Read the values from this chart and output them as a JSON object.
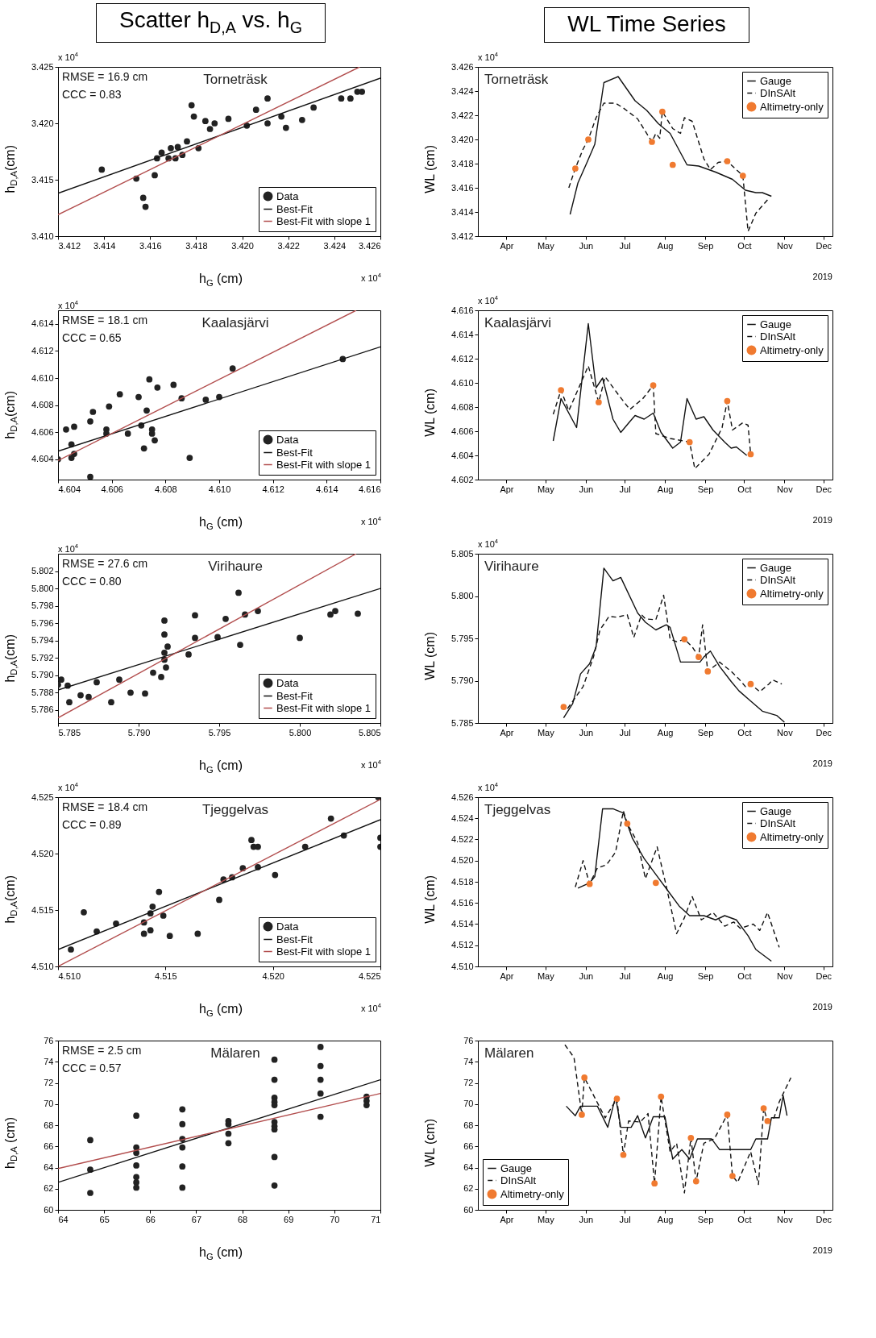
{
  "chart_data": [
    {
      "type": "scatter",
      "title": "Scatter h$_{D,A}$ vs. h$_{G}$",
      "subtitle": "Torneträsk",
      "xlabel": "h$_{G}$ (cm)",
      "ylabel": "h$_{D,A}$(cm)",
      "annotations": [
        "RMSE = 16.9 cm",
        "CCC = 0.83",
        "x 10$^{4}$",
        "x 10$^{4}$"
      ],
      "legend": "bottom right",
      "xlim": [
        3.412,
        3.426
      ],
      "xticks": [
        3.412,
        3.414,
        3.416,
        3.418,
        {
          "value": 3.42,
          "label": "3.420"
        },
        3.422,
        3.424,
        3.426
      ],
      "ylim": [
        3.41,
        3.425
      ],
      "yticks": [
        {
          "value": 3.41,
          "label": "3.410"
        },
        3.415,
        {
          "value": 3.42,
          "label": "3.420"
        },
        3.425
      ],
      "series": [
        {
          "name": "Data",
          "type": "scatter",
          "color": "#222222",
          "x": [
            3.4139,
            3.4154,
            3.4157,
            3.4158,
            3.4162,
            3.4163,
            3.4165,
            3.4168,
            3.4169,
            3.4171,
            3.4172,
            3.4174,
            3.4176,
            3.4178,
            3.4179,
            3.4181,
            3.4184,
            3.4186,
            3.4188,
            3.4194,
            3.4202,
            3.4206,
            3.4211,
            3.4211,
            3.4217,
            3.4219,
            3.4226,
            3.4231,
            3.4243,
            3.4247,
            3.425,
            3.4252
          ],
          "values": [
            3.4159,
            3.4151,
            3.4134,
            3.4126,
            3.4154,
            3.4169,
            3.4174,
            3.4169,
            3.4178,
            3.4169,
            3.4179,
            3.4172,
            3.4184,
            3.4216,
            3.4206,
            3.4178,
            3.4202,
            3.4195,
            3.42,
            3.4204,
            3.4198,
            3.4212,
            3.4222,
            3.42,
            3.4206,
            3.4196,
            3.4203,
            3.4214,
            3.4222,
            3.4222,
            3.4228,
            3.4228
          ]
        },
        {
          "name": "Best-Fit",
          "type": "line",
          "color": "#111111",
          "x": [
            3.412,
            3.426
          ],
          "values": [
            3.4138,
            3.424
          ]
        },
        {
          "name": "Best-Fit with slope 1",
          "type": "line",
          "color": "#b24d4d",
          "x": [
            3.412,
            3.4251
          ],
          "values": [
            3.4119,
            3.425
          ]
        }
      ]
    },
    {
      "type": "line",
      "title": "WL Time Series",
      "subtitle": "Torneträsk",
      "ylabel": "WL (cm)",
      "annotations": [
        "2019",
        "x 10$^{4}$"
      ],
      "legend": "top right",
      "xlim": [
        "2019-03-10",
        "2019-12-08"
      ],
      "xticks": [
        {
          "value": "2019-04-01",
          "label": "Apr"
        },
        {
          "value": "2019-05-01",
          "label": "May"
        },
        {
          "value": "2019-06-01",
          "label": "Jun"
        },
        {
          "value": "2019-07-01",
          "label": "Jul"
        },
        {
          "value": "2019-08-01",
          "label": "Aug"
        },
        {
          "value": "2019-09-01",
          "label": "Sep"
        },
        {
          "value": "2019-10-01",
          "label": "Oct"
        },
        {
          "value": "2019-11-01",
          "label": "Nov"
        },
        {
          "value": "2019-12-01",
          "label": "Dec"
        }
      ],
      "ylim": [
        3.412,
        3.426
      ],
      "yticks": [
        3.412,
        3.414,
        3.416,
        3.418,
        {
          "value": 3.42,
          "label": "3.420"
        },
        3.422,
        3.424,
        3.426
      ],
      "series": [
        {
          "name": "Gauge",
          "type": "line",
          "line_style": "solid",
          "color": "#111111",
          "x": [
            "2019-05-20",
            "2019-05-26",
            "2019-06-02",
            "2019-06-08",
            "2019-06-15",
            "2019-06-26",
            "2019-07-09",
            "2019-07-18",
            "2019-07-27",
            "2019-08-05",
            "2019-08-18",
            "2019-08-27",
            "2019-09-09",
            "2019-09-22",
            "2019-10-02",
            "2019-10-10",
            "2019-10-15",
            "2019-10-22"
          ],
          "values": [
            3.4138,
            3.4164,
            3.4181,
            3.4196,
            3.4247,
            3.4252,
            3.4232,
            3.4224,
            3.4213,
            3.4205,
            3.4179,
            3.4178,
            3.4173,
            3.4167,
            3.4158,
            3.4156,
            3.4156,
            3.4153
          ]
        },
        {
          "name": "DInSAlt",
          "type": "line",
          "line_style": "dashed",
          "color": "#111111",
          "x": [
            "2019-05-19",
            "2019-05-24",
            "2019-05-30",
            "2019-06-03",
            "2019-06-09",
            "2019-06-15",
            "2019-06-24",
            "2019-06-30",
            "2019-07-11",
            "2019-07-22",
            "2019-07-25",
            "2019-07-28",
            "2019-07-30",
            "2019-08-07",
            "2019-08-13",
            "2019-08-16",
            "2019-08-22",
            "2019-08-31",
            "2019-09-05",
            "2019-09-11",
            "2019-09-18",
            "2019-09-30",
            "2019-10-04",
            "2019-10-10",
            "2019-10-19"
          ],
          "values": [
            3.416,
            3.4176,
            3.4192,
            3.42,
            3.4218,
            3.423,
            3.423,
            3.4226,
            3.4217,
            3.4198,
            3.4205,
            3.4201,
            3.4223,
            3.4209,
            3.4205,
            3.4218,
            3.4215,
            3.4184,
            3.4175,
            3.4181,
            3.4182,
            3.417,
            3.4124,
            3.4139,
            3.415
          ]
        },
        {
          "name": "Altimetry-only",
          "type": "scatter",
          "color": "#f07a30",
          "x": [
            "2019-05-24",
            "2019-06-03",
            "2019-07-22",
            "2019-07-30",
            "2019-08-07",
            "2019-09-18",
            "2019-09-30"
          ],
          "values": [
            3.4176,
            3.42,
            3.4198,
            3.4223,
            3.4179,
            3.4182,
            3.417
          ]
        }
      ]
    },
    {
      "type": "scatter",
      "subtitle": "Kaalasjärvi",
      "xlabel": "h$_{G}$ (cm)",
      "ylabel": "h$_{D,A}$(cm)",
      "annotations": [
        "RMSE = 18.1 cm",
        "CCC = 0.65",
        "x 10$^{4}$",
        "x 10$^{4}$"
      ],
      "legend": "bottom right",
      "xlim": [
        4.604,
        4.616
      ],
      "xticks": [
        4.604,
        4.606,
        4.608,
        {
          "value": 4.61,
          "label": "4.610"
        },
        4.612,
        4.614,
        4.616
      ],
      "ylim": [
        4.6025,
        4.615
      ],
      "yticks": [
        4.604,
        4.606,
        4.608,
        {
          "value": 4.61,
          "label": "4.610"
        },
        4.612,
        4.614
      ],
      "series": [
        {
          "name": "Data",
          "type": "scatter",
          "color": "#222222",
          "x": [
            4.604,
            4.6043,
            4.6045,
            4.6045,
            4.6046,
            4.6046,
            4.6052,
            4.6052,
            4.6053,
            4.6058,
            4.6058,
            4.6059,
            4.6063,
            4.6066,
            4.607,
            4.6071,
            4.6072,
            4.6073,
            4.6074,
            4.6075,
            4.6075,
            4.6076,
            4.6077,
            4.6083,
            4.6086,
            4.6089,
            4.6095,
            4.61,
            4.6105,
            4.6146
          ],
          "values": [
            4.604,
            4.6062,
            4.6051,
            4.6041,
            4.6064,
            4.6044,
            4.6027,
            4.6068,
            4.6075,
            4.6062,
            4.6059,
            4.6079,
            4.6088,
            4.6059,
            4.6086,
            4.6065,
            4.6048,
            4.6076,
            4.6099,
            4.6062,
            4.6059,
            4.6054,
            4.6093,
            4.6095,
            4.6085,
            4.6041,
            4.6084,
            4.6086,
            4.6107,
            4.6114
          ]
        },
        {
          "name": "Best-Fit",
          "type": "line",
          "color": "#111111",
          "x": [
            4.604,
            4.616
          ],
          "values": [
            4.6046,
            4.6123
          ]
        },
        {
          "name": "Best-Fit with slope 1",
          "type": "line",
          "color": "#b24d4d",
          "x": [
            4.604,
            4.6151
          ],
          "values": [
            4.6039,
            4.615
          ]
        }
      ]
    },
    {
      "type": "line",
      "subtitle": "Kaalasjärvi",
      "ylabel": "WL (cm)",
      "annotations": [
        "2019",
        "x 10$^{4}$"
      ],
      "legend": "top right",
      "xlim": [
        "2019-03-10",
        "2019-12-08"
      ],
      "xticks": [
        {
          "value": "2019-04-01",
          "label": "Apr"
        },
        {
          "value": "2019-05-01",
          "label": "May"
        },
        {
          "value": "2019-06-01",
          "label": "Jun"
        },
        {
          "value": "2019-07-01",
          "label": "Jul"
        },
        {
          "value": "2019-08-01",
          "label": "Aug"
        },
        {
          "value": "2019-09-01",
          "label": "Sep"
        },
        {
          "value": "2019-10-01",
          "label": "Oct"
        },
        {
          "value": "2019-11-01",
          "label": "Nov"
        },
        {
          "value": "2019-12-01",
          "label": "Dec"
        }
      ],
      "ylim": [
        4.602,
        4.616
      ],
      "yticks": [
        4.602,
        4.604,
        4.606,
        4.608,
        {
          "value": 4.61,
          "label": "4.610"
        },
        4.612,
        4.614,
        4.616
      ],
      "series": [
        {
          "name": "Gauge",
          "type": "line",
          "line_style": "solid",
          "color": "#111111",
          "x": [
            "2019-05-07",
            "2019-05-13",
            "2019-05-25",
            "2019-06-03",
            "2019-06-09",
            "2019-06-14",
            "2019-06-22",
            "2019-06-28",
            "2019-07-05",
            "2019-07-09",
            "2019-07-16",
            "2019-07-23",
            "2019-07-29",
            "2019-08-07",
            "2019-08-13",
            "2019-08-18",
            "2019-08-25",
            "2019-08-31",
            "2019-09-07",
            "2019-09-16",
            "2019-09-21",
            "2019-09-25",
            "2019-10-03"
          ],
          "values": [
            4.6052,
            4.6087,
            4.6063,
            4.6149,
            4.6096,
            4.6104,
            4.607,
            4.6059,
            4.6068,
            4.6073,
            4.607,
            4.6075,
            4.6059,
            4.6046,
            4.6051,
            4.6087,
            4.607,
            4.6072,
            4.6061,
            4.6051,
            4.6046,
            4.6047,
            4.604
          ]
        },
        {
          "name": "DInSAlt",
          "type": "line",
          "line_style": "dashed",
          "color": "#111111",
          "x": [
            "2019-05-07",
            "2019-05-13",
            "2019-05-19",
            "2019-06-03",
            "2019-06-11",
            "2019-06-16",
            "2019-06-27",
            "2019-07-05",
            "2019-07-15",
            "2019-07-23",
            "2019-07-25",
            "2019-08-05",
            "2019-08-20",
            "2019-08-24",
            "2019-09-04",
            "2019-09-14",
            "2019-09-18",
            "2019-09-22",
            "2019-09-30",
            "2019-10-04",
            "2019-10-06"
          ],
          "values": [
            4.6074,
            4.6094,
            4.6077,
            4.6114,
            4.6084,
            4.6105,
            4.6089,
            4.6078,
            4.6087,
            4.6098,
            4.6058,
            4.6054,
            4.6051,
            4.6029,
            4.6041,
            4.6063,
            4.6085,
            4.6061,
            4.6067,
            4.6065,
            4.6041
          ]
        },
        {
          "name": "Altimetry-only",
          "type": "scatter",
          "color": "#f07a30",
          "x": [
            "2019-05-13",
            "2019-06-11",
            "2019-07-23",
            "2019-08-20",
            "2019-09-18",
            "2019-10-06"
          ],
          "values": [
            4.6094,
            4.6084,
            4.6098,
            4.6051,
            4.6085,
            4.6041
          ]
        }
      ]
    },
    {
      "type": "scatter",
      "subtitle": "Virihaure",
      "xlabel": "h$_{G}$ (cm)",
      "ylabel": "h$_{D,A}$(cm)",
      "annotations": [
        "RMSE = 27.6 cm",
        "CCC = 0.80",
        "x 10$^{4}$",
        "x 10$^{4}$"
      ],
      "legend": "bottom right",
      "xlim": [
        5.785,
        5.805
      ],
      "xticks": [
        5.785,
        {
          "value": 5.79,
          "label": "5.790"
        },
        5.795,
        {
          "value": 5.8,
          "label": "5.800"
        },
        5.805
      ],
      "ylim": [
        5.7845,
        5.804
      ],
      "yticks": [
        5.786,
        5.788,
        {
          "value": 5.79,
          "label": "5.790"
        },
        5.792,
        5.794,
        5.796,
        5.798,
        {
          "value": 5.8,
          "label": "5.800"
        },
        5.802
      ],
      "series": [
        {
          "name": "Data",
          "type": "scatter",
          "color": "#222222",
          "x": [
            5.785,
            5.7852,
            5.7856,
            5.7857,
            5.7864,
            5.7869,
            5.7874,
            5.7883,
            5.7888,
            5.7895,
            5.7904,
            5.7909,
            5.7914,
            5.7916,
            5.7916,
            5.7916,
            5.7916,
            5.7917,
            5.7918,
            5.7931,
            5.7935,
            5.7935,
            5.7949,
            5.7954,
            5.7962,
            5.7963,
            5.7966,
            5.7974,
            5.8,
            5.8019,
            5.8022,
            5.8036
          ],
          "values": [
            5.7889,
            5.7895,
            5.7888,
            5.7869,
            5.7877,
            5.7875,
            5.7892,
            5.7869,
            5.7895,
            5.788,
            5.7879,
            5.7903,
            5.7898,
            5.7963,
            5.7947,
            5.7926,
            5.7918,
            5.7909,
            5.7933,
            5.7924,
            5.7969,
            5.7943,
            5.7944,
            5.7965,
            5.7995,
            5.7935,
            5.797,
            5.7974,
            5.7943,
            5.797,
            5.7974,
            5.7971
          ]
        },
        {
          "name": "Best-Fit",
          "type": "line",
          "color": "#111111",
          "x": [
            5.785,
            5.805
          ],
          "values": [
            5.7883,
            5.8
          ]
        },
        {
          "name": "Best-Fit with slope 1",
          "type": "line",
          "color": "#b24d4d",
          "x": [
            5.785,
            5.8035
          ],
          "values": [
            5.7851,
            5.804
          ]
        }
      ]
    },
    {
      "type": "line",
      "subtitle": "Virihaure",
      "ylabel": "WL (cm)",
      "annotations": [
        "2019",
        "x 10$^{4}$"
      ],
      "legend": "top right",
      "xlim": [
        "2019-03-10",
        "2019-12-08"
      ],
      "xticks": [
        {
          "value": "2019-04-01",
          "label": "Apr"
        },
        {
          "value": "2019-05-01",
          "label": "May"
        },
        {
          "value": "2019-06-01",
          "label": "Jun"
        },
        {
          "value": "2019-07-01",
          "label": "Jul"
        },
        {
          "value": "2019-08-01",
          "label": "Aug"
        },
        {
          "value": "2019-09-01",
          "label": "Sep"
        },
        {
          "value": "2019-10-01",
          "label": "Oct"
        },
        {
          "value": "2019-11-01",
          "label": "Nov"
        },
        {
          "value": "2019-12-01",
          "label": "Dec"
        }
      ],
      "ylim": [
        5.785,
        5.805
      ],
      "yticks": [
        5.785,
        {
          "value": 5.79,
          "label": "5.790"
        },
        5.795,
        {
          "value": 5.8,
          "label": "5.800"
        },
        5.805
      ],
      "series": [
        {
          "name": "Gauge",
          "type": "line",
          "line_style": "solid",
          "color": "#111111",
          "x": [
            "2019-05-15",
            "2019-05-22",
            "2019-05-28",
            "2019-06-04",
            "2019-06-09",
            "2019-06-15",
            "2019-06-22",
            "2019-06-28",
            "2019-07-11",
            "2019-07-17",
            "2019-07-25",
            "2019-08-02",
            "2019-08-05",
            "2019-08-13",
            "2019-08-20",
            "2019-08-28",
            "2019-08-31",
            "2019-09-05",
            "2019-09-12",
            "2019-09-21",
            "2019-09-27",
            "2019-10-06",
            "2019-10-15",
            "2019-10-26",
            "2019-11-01"
          ],
          "values": [
            5.7856,
            5.7873,
            5.7908,
            5.792,
            5.794,
            5.8033,
            5.8018,
            5.8022,
            5.798,
            5.7969,
            5.796,
            5.7966,
            5.7963,
            5.7922,
            5.7922,
            5.7922,
            5.7928,
            5.7935,
            5.7917,
            5.7899,
            5.7888,
            5.7876,
            5.7864,
            5.7859,
            5.7851
          ]
        },
        {
          "name": "DInSAlt",
          "type": "line",
          "line_style": "dashed",
          "color": "#111111",
          "x": [
            "2019-05-18",
            "2019-05-30",
            "2019-06-07",
            "2019-06-12",
            "2019-06-19",
            "2019-06-25",
            "2019-07-03",
            "2019-07-08",
            "2019-07-14",
            "2019-07-17",
            "2019-07-25",
            "2019-07-31",
            "2019-08-05",
            "2019-08-10",
            "2019-08-16",
            "2019-08-22",
            "2019-08-27",
            "2019-08-30",
            "2019-09-03",
            "2019-09-12",
            "2019-09-21",
            "2019-09-27",
            "2019-10-02",
            "2019-10-06",
            "2019-10-13",
            "2019-10-20",
            "2019-10-23",
            "2019-10-30"
          ],
          "values": [
            5.7867,
            5.7893,
            5.7928,
            5.796,
            5.7976,
            5.7975,
            5.7978,
            5.7951,
            5.7978,
            5.7973,
            5.7972,
            5.8001,
            5.7949,
            5.7946,
            5.7949,
            5.794,
            5.7928,
            5.7966,
            5.7911,
            5.7922,
            5.7911,
            5.7902,
            5.7893,
            5.7896,
            5.7887,
            5.7896,
            5.7901,
            5.7896
          ]
        },
        {
          "name": "Altimetry-only",
          "type": "scatter",
          "color": "#f07a30",
          "x": [
            "2019-05-15",
            "2019-08-16",
            "2019-08-27",
            "2019-09-03",
            "2019-10-06"
          ],
          "values": [
            5.7869,
            5.7949,
            5.7928,
            5.7911,
            5.7896
          ]
        }
      ]
    },
    {
      "type": "scatter",
      "subtitle": "Tjeggelvas",
      "xlabel": "h$_{G}$ (cm)",
      "ylabel": "h$_{D,A}$(cm)",
      "annotations": [
        "RMSE = 18.4 cm",
        "CCC = 0.89",
        "x 10$^{4}$",
        "x 10$^{4}$"
      ],
      "legend": "bottom right",
      "xlim": [
        4.51,
        4.525
      ],
      "xticks": [
        {
          "value": 4.51,
          "label": "4.510"
        },
        4.515,
        {
          "value": 4.52,
          "label": "4.520"
        },
        4.525
      ],
      "ylim": [
        4.51,
        4.525
      ],
      "yticks": [
        {
          "value": 4.51,
          "label": "4.510"
        },
        4.515,
        {
          "value": 4.52,
          "label": "4.520"
        },
        4.525
      ],
      "series": [
        {
          "name": "Data",
          "type": "scatter",
          "color": "#222222",
          "x": [
            4.5106,
            4.5112,
            4.5118,
            4.5127,
            4.514,
            4.514,
            4.5143,
            4.5144,
            4.5143,
            4.5147,
            4.5149,
            4.5152,
            4.5165,
            4.5175,
            4.5177,
            4.5181,
            4.5186,
            4.519,
            4.5191,
            4.5193,
            4.5193,
            4.5201,
            4.5215,
            4.5227,
            4.5233,
            4.5249,
            4.525,
            4.525
          ],
          "values": [
            4.5115,
            4.5148,
            4.5131,
            4.5138,
            4.5129,
            4.5139,
            4.5147,
            4.5153,
            4.5132,
            4.5166,
            4.5145,
            4.5127,
            4.5129,
            4.5159,
            4.5177,
            4.5179,
            4.5187,
            4.5212,
            4.5206,
            4.5206,
            4.5188,
            4.5181,
            4.5206,
            4.5231,
            4.5216,
            4.525,
            4.5214,
            4.5206
          ]
        },
        {
          "name": "Best-Fit",
          "type": "line",
          "color": "#111111",
          "x": [
            4.51,
            4.525
          ],
          "values": [
            4.5115,
            4.523
          ]
        },
        {
          "name": "Best-Fit with slope 1",
          "type": "line",
          "color": "#b24d4d",
          "x": [
            4.51,
            4.525
          ],
          "values": [
            4.51,
            4.5248
          ]
        }
      ]
    },
    {
      "type": "line",
      "subtitle": "Tjeggelvas",
      "ylabel": "WL (cm)",
      "annotations": [
        "2019",
        "x 10$^{4}$"
      ],
      "legend": "top right",
      "xlim": [
        "2019-03-10",
        "2019-12-08"
      ],
      "xticks": [
        {
          "value": "2019-04-01",
          "label": "Apr"
        },
        {
          "value": "2019-05-01",
          "label": "May"
        },
        {
          "value": "2019-06-01",
          "label": "Jun"
        },
        {
          "value": "2019-07-01",
          "label": "Jul"
        },
        {
          "value": "2019-08-01",
          "label": "Aug"
        },
        {
          "value": "2019-09-01",
          "label": "Sep"
        },
        {
          "value": "2019-10-01",
          "label": "Oct"
        },
        {
          "value": "2019-11-01",
          "label": "Nov"
        },
        {
          "value": "2019-12-01",
          "label": "Dec"
        }
      ],
      "ylim": [
        4.51,
        4.526
      ],
      "yticks": [
        {
          "value": 4.51,
          "label": "4.510"
        },
        4.512,
        4.514,
        4.516,
        4.518,
        {
          "value": 4.52,
          "label": "4.520"
        },
        4.522,
        4.524,
        4.526
      ],
      "series": [
        {
          "name": "Gauge",
          "type": "line",
          "line_style": "solid",
          "color": "#111111",
          "x": [
            "2019-05-26",
            "2019-06-04",
            "2019-06-08",
            "2019-06-14",
            "2019-06-22",
            "2019-06-30",
            "2019-07-07",
            "2019-07-16",
            "2019-07-25",
            "2019-08-03",
            "2019-08-12",
            "2019-08-20",
            "2019-08-31",
            "2019-09-09",
            "2019-09-16",
            "2019-09-25",
            "2019-10-04",
            "2019-10-10",
            "2019-10-22"
          ],
          "values": [
            4.5174,
            4.5179,
            4.5185,
            4.5249,
            4.5249,
            4.5245,
            4.5221,
            4.5202,
            4.5187,
            4.5172,
            4.5157,
            4.5148,
            4.5148,
            4.5144,
            4.5148,
            4.5144,
            4.5129,
            4.5116,
            4.5105
          ]
        },
        {
          "name": "DInSAlt",
          "type": "line",
          "line_style": "dashed",
          "color": "#111111",
          "x": [
            "2019-05-24",
            "2019-05-30",
            "2019-06-04",
            "2019-06-10",
            "2019-06-17",
            "2019-06-24",
            "2019-06-30",
            "2019-07-03",
            "2019-07-11",
            "2019-07-17",
            "2019-07-26",
            "2019-08-02",
            "2019-08-10",
            "2019-08-16",
            "2019-08-22",
            "2019-08-29",
            "2019-09-07",
            "2019-09-16",
            "2019-09-23",
            "2019-09-28",
            "2019-10-08",
            "2019-10-13",
            "2019-10-19",
            "2019-10-28"
          ],
          "values": [
            4.5175,
            4.52,
            4.5178,
            4.5193,
            4.5196,
            4.5208,
            4.5247,
            4.5235,
            4.5217,
            4.5183,
            4.5213,
            4.5176,
            4.5131,
            4.5146,
            4.5166,
            4.5144,
            4.5151,
            4.5138,
            4.5142,
            4.5136,
            4.514,
            4.5134,
            4.5151,
            4.5118
          ]
        },
        {
          "name": "Altimetry-only",
          "type": "scatter",
          "color": "#f07a30",
          "x": [
            "2019-06-04",
            "2019-07-03",
            "2019-07-25"
          ],
          "values": [
            4.5178,
            4.5235,
            4.5179
          ]
        }
      ]
    },
    {
      "type": "scatter",
      "subtitle": "Mälaren",
      "xlabel": "h$_{G}$ (cm)",
      "ylabel": "h$_{D,A}$ (cm)",
      "annotations": [
        "RMSE = 2.5 cm",
        "CCC = 0.57"
      ],
      "xlim": [
        64,
        71
      ],
      "xticks": [
        64,
        65,
        66,
        67,
        68,
        69,
        70,
        71
      ],
      "ylim": [
        60,
        76
      ],
      "yticks": [
        60,
        62,
        64,
        66,
        68,
        70,
        72,
        74,
        76
      ],
      "series": [
        {
          "type": "scatter",
          "color": "#222222",
          "x": [
            64.7,
            64.7,
            64.7,
            65.7,
            65.7,
            65.7,
            65.7,
            65.7,
            65.7,
            65.7,
            66.7,
            66.7,
            66.7,
            66.7,
            66.7,
            66.7,
            67.7,
            67.7,
            67.7,
            67.7,
            68.7,
            68.7,
            68.7,
            68.7,
            68.7,
            68.7,
            68.7,
            68.7,
            68.7,
            68.7,
            69.7,
            69.7,
            69.7,
            69.7,
            69.7,
            70.7,
            70.7,
            70.7
          ],
          "values": [
            66.6,
            63.8,
            61.6,
            68.9,
            65.9,
            65.4,
            64.2,
            63.1,
            62.6,
            62.1,
            69.5,
            68.1,
            66.7,
            65.9,
            64.1,
            62.1,
            68.4,
            68.1,
            67.2,
            66.3,
            74.2,
            72.3,
            70.6,
            70.2,
            69.9,
            68.3,
            67.9,
            67.6,
            65.0,
            62.3,
            75.4,
            73.6,
            72.3,
            71.0,
            68.8,
            70.7,
            70.3,
            69.9
          ]
        },
        {
          "type": "line",
          "color": "#111111",
          "x": [
            64,
            71
          ],
          "values": [
            62.6,
            72.3
          ]
        },
        {
          "type": "line",
          "color": "#b24d4d",
          "x": [
            64,
            71
          ],
          "values": [
            63.9,
            71.0
          ]
        }
      ]
    },
    {
      "type": "line",
      "subtitle": "Mälaren",
      "ylabel": "WL (cm)",
      "annotations": [
        "2019"
      ],
      "legend": "bottom left",
      "xlim": [
        "2019-03-10",
        "2019-12-08"
      ],
      "xticks": [
        {
          "value": "2019-04-01",
          "label": "Apr"
        },
        {
          "value": "2019-05-01",
          "label": "May"
        },
        {
          "value": "2019-06-01",
          "label": "Jun"
        },
        {
          "value": "2019-07-01",
          "label": "Jul"
        },
        {
          "value": "2019-08-01",
          "label": "Aug"
        },
        {
          "value": "2019-09-01",
          "label": "Sep"
        },
        {
          "value": "2019-10-01",
          "label": "Oct"
        },
        {
          "value": "2019-11-01",
          "label": "Nov"
        },
        {
          "value": "2019-12-01",
          "label": "Dec"
        }
      ],
      "ylim": [
        60,
        76
      ],
      "yticks": [
        60,
        62,
        64,
        66,
        68,
        70,
        72,
        74,
        76
      ],
      "series": [
        {
          "name": "Gauge",
          "type": "line",
          "line_style": "solid",
          "color": "#111111",
          "x": [
            "2019-05-17",
            "2019-05-24",
            "2019-05-28",
            "2019-06-10",
            "2019-06-18",
            "2019-06-24",
            "2019-06-28",
            "2019-07-06",
            "2019-07-11",
            "2019-07-17",
            "2019-07-23",
            "2019-08-01",
            "2019-08-07",
            "2019-08-14",
            "2019-08-20",
            "2019-08-26",
            "2019-09-06",
            "2019-09-12",
            "2019-10-06",
            "2019-10-10",
            "2019-10-19",
            "2019-10-22",
            "2019-10-28",
            "2019-10-31",
            "2019-11-03"
          ],
          "values": [
            69.8,
            68.9,
            69.8,
            69.8,
            67.8,
            70.7,
            67.8,
            67.8,
            68.9,
            66.8,
            68.8,
            68.8,
            64.8,
            65.7,
            64.8,
            66.7,
            66.7,
            65.7,
            65.7,
            66.7,
            66.7,
            68.7,
            68.7,
            70.8,
            68.9
          ]
        },
        {
          "name": "DInSAlt",
          "type": "line",
          "line_style": "dashed",
          "color": "#111111",
          "x": [
            "2019-05-16",
            "2019-05-23",
            "2019-05-29",
            "2019-05-31",
            "2019-06-08",
            "2019-06-16",
            "2019-06-25",
            "2019-06-30",
            "2019-07-04",
            "2019-07-13",
            "2019-07-19",
            "2019-07-24",
            "2019-07-29",
            "2019-08-05",
            "2019-08-10",
            "2019-08-16",
            "2019-08-21",
            "2019-08-25",
            "2019-08-31",
            "2019-09-08",
            "2019-09-18",
            "2019-09-22",
            "2019-09-26",
            "2019-10-06",
            "2019-10-12",
            "2019-10-16",
            "2019-10-19",
            "2019-10-24",
            "2019-10-28",
            "2019-11-06"
          ],
          "values": [
            75.6,
            74.4,
            69.0,
            72.5,
            70.6,
            68.7,
            70.5,
            65.2,
            68.4,
            68.3,
            69.1,
            62.5,
            70.7,
            65.5,
            66.3,
            61.6,
            66.8,
            62.7,
            66.3,
            66.7,
            69.0,
            63.2,
            62.6,
            65.5,
            62.4,
            69.6,
            68.4,
            68.7,
            70.2,
            72.5
          ]
        },
        {
          "name": "Altimetry-only",
          "type": "scatter",
          "color": "#f07a30",
          "x": [
            "2019-05-29",
            "2019-05-31",
            "2019-06-25",
            "2019-06-30",
            "2019-07-24",
            "2019-07-29",
            "2019-08-21",
            "2019-08-25",
            "2019-09-18",
            "2019-09-22",
            "2019-10-16",
            "2019-10-19"
          ],
          "values": [
            69.0,
            72.5,
            70.5,
            65.2,
            62.5,
            70.7,
            66.8,
            62.7,
            69.0,
            63.2,
            69.6,
            68.4
          ]
        }
      ]
    }
  ]
}
